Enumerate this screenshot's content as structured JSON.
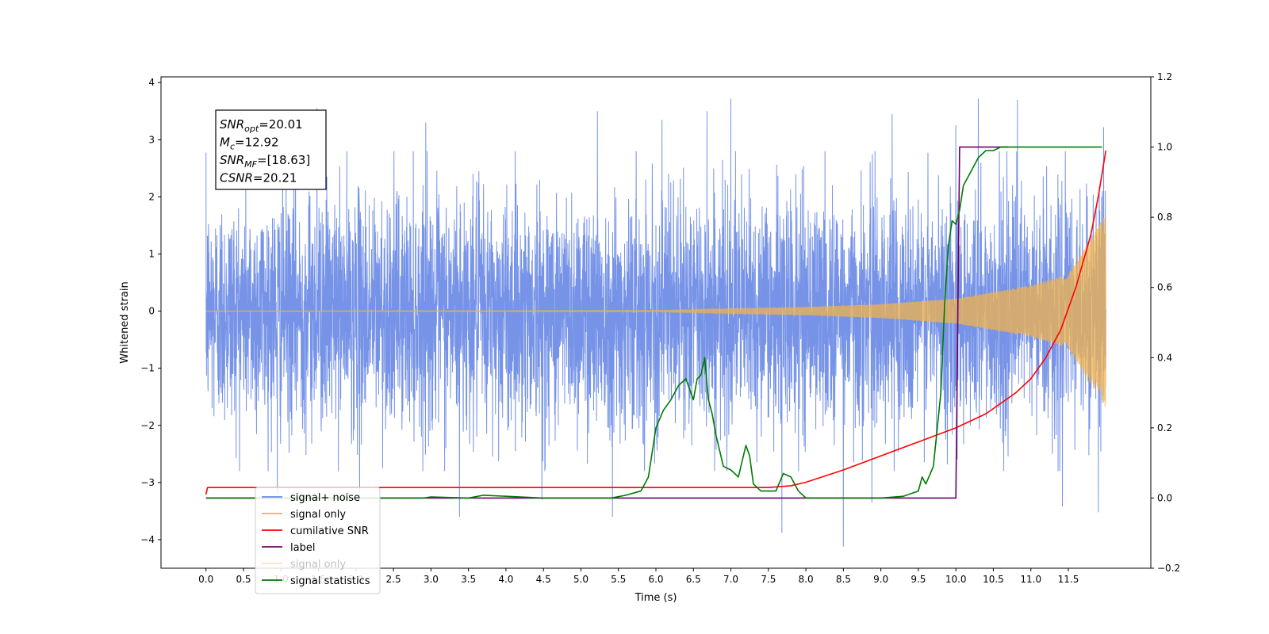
{
  "chart_data": {
    "type": "line",
    "xlabel": "Time (s)",
    "ylabel": "Whitened strain",
    "xlim": [
      -0.6,
      12.6
    ],
    "ylim": [
      -4.5,
      4.1
    ],
    "ylim_right": [
      -0.2,
      1.2
    ],
    "x_ticks": [
      0.0,
      0.5,
      1.0,
      1.5,
      2.0,
      2.5,
      3.0,
      3.5,
      4.0,
      4.5,
      5.0,
      5.5,
      6.0,
      6.5,
      7.0,
      7.5,
      8.0,
      8.5,
      9.0,
      9.5,
      10.0,
      10.5,
      11.0,
      11.5
    ],
    "x_tick_labels": [
      "0.0",
      "0.5",
      "1.0",
      "1.5",
      "2.0",
      "2.5",
      "3.0",
      "3.5",
      "4.0",
      "4.5",
      "5.0",
      "5.5",
      "6.0",
      "6.5",
      "7.0",
      "7.5",
      "8.0",
      "8.5",
      "9.0",
      "9.5",
      "10.0",
      "10.5",
      "11.0",
      "11.5"
    ],
    "y_ticks": [
      -4,
      -3,
      -2,
      -1,
      0,
      1,
      2,
      3,
      4
    ],
    "y_tick_labels": [
      "−4",
      "−3",
      "−2",
      "−1",
      "0",
      "1",
      "2",
      "3",
      "4"
    ],
    "y_ticks_right": [
      -0.2,
      0.0,
      0.2,
      0.4,
      0.6,
      0.8,
      1.0,
      1.2
    ],
    "y_tick_labels_right": [
      "−0.2",
      "0.0",
      "0.2",
      "0.4",
      "0.6",
      "0.8",
      "1.0",
      "1.2"
    ],
    "grid": false,
    "legend_position": "lower-left",
    "annotation": {
      "lines": [
        {
          "main": "SNR",
          "sub": "opt",
          "value": "=20.01"
        },
        {
          "main": "M",
          "sub": "c",
          "value": "=12.92"
        },
        {
          "main": "SNR",
          "sub": "MF",
          "value": "=[18.63]"
        },
        {
          "main": "CSNR",
          "sub": "",
          "value": "=20.21"
        }
      ]
    },
    "series": [
      {
        "name": "signal+ noise",
        "axis": "left",
        "color": "#6f8de6",
        "kind": "noise",
        "t_start": 0.0,
        "t_end": 12.0,
        "std": 1.0,
        "peak_spikes": [
          [
            0.95,
            -3.2
          ],
          [
            1.48,
            3.55
          ],
          [
            2.05,
            -3.3
          ],
          [
            2.93,
            3.3
          ],
          [
            3.38,
            -3.6
          ],
          [
            4.48,
            -3.3
          ],
          [
            5.22,
            3.5
          ],
          [
            5.42,
            -3.6
          ],
          [
            6.08,
            3.35
          ],
          [
            6.68,
            3.5
          ],
          [
            7.0,
            3.72
          ],
          [
            7.68,
            -3.88
          ],
          [
            8.5,
            -4.12
          ],
          [
            8.88,
            -3.35
          ],
          [
            9.15,
            3.45
          ],
          [
            10.0,
            3.25
          ],
          [
            10.3,
            3.72
          ],
          [
            10.82,
            3.7
          ],
          [
            11.42,
            -3.42
          ],
          [
            11.9,
            -3.52
          ],
          [
            11.97,
            3.22
          ]
        ]
      },
      {
        "name": "signal only",
        "axis": "left",
        "color": "#f2b34d",
        "kind": "chirp",
        "t_start": 0.0,
        "t_end": 12.0,
        "t_c": 12.6,
        "amplitude_at": [
          [
            0.0,
            0.005
          ],
          [
            6.0,
            0.012
          ],
          [
            8.0,
            0.07
          ],
          [
            9.0,
            0.12
          ],
          [
            10.0,
            0.22
          ],
          [
            11.0,
            0.45
          ],
          [
            11.5,
            0.65
          ],
          [
            12.0,
            1.7
          ]
        ]
      },
      {
        "name": "cumilative SNR",
        "axis": "right",
        "color": "#ff0000",
        "kind": "line",
        "x": [
          0.0,
          0.02,
          2.0,
          4.0,
          6.0,
          7.0,
          7.5,
          7.8,
          8.0,
          8.5,
          9.0,
          9.5,
          10.0,
          10.4,
          10.8,
          11.0,
          11.2,
          11.4,
          11.6,
          11.8,
          11.9,
          12.0
        ],
        "y": [
          0.01,
          0.03,
          0.03,
          0.03,
          0.03,
          0.03,
          0.03,
          0.035,
          0.045,
          0.08,
          0.12,
          0.16,
          0.2,
          0.24,
          0.3,
          0.34,
          0.4,
          0.48,
          0.6,
          0.75,
          0.86,
          0.99
        ]
      },
      {
        "name": "label",
        "axis": "right",
        "color": "#6b006b",
        "kind": "line",
        "x": [
          0.0,
          10.0,
          10.05,
          10.7
        ],
        "y": [
          0.0,
          0.0,
          1.0,
          1.0
        ]
      },
      {
        "name": "signal statistics",
        "axis": "right",
        "color": "#007a00",
        "kind": "line",
        "x": [
          0.0,
          1.0,
          2.0,
          2.9,
          3.0,
          3.5,
          3.7,
          4.0,
          4.5,
          5.0,
          5.4,
          5.6,
          5.8,
          5.9,
          6.0,
          6.1,
          6.2,
          6.3,
          6.4,
          6.5,
          6.55,
          6.6,
          6.65,
          6.7,
          6.75,
          6.8,
          6.9,
          7.0,
          7.1,
          7.2,
          7.25,
          7.3,
          7.4,
          7.5,
          7.6,
          7.7,
          7.8,
          7.9,
          8.0,
          8.5,
          9.0,
          9.3,
          9.5,
          9.55,
          9.6,
          9.7,
          9.8,
          9.85,
          9.9,
          9.95,
          10.0,
          10.05,
          10.1,
          10.2,
          10.3,
          10.4,
          10.5,
          10.6,
          10.8,
          11.0,
          11.5,
          11.95
        ],
        "y": [
          0.0,
          0.0,
          0.0,
          0.0,
          0.003,
          0.0,
          0.008,
          0.005,
          0.0,
          0.0,
          0.0,
          0.008,
          0.02,
          0.06,
          0.2,
          0.25,
          0.28,
          0.32,
          0.34,
          0.28,
          0.34,
          0.35,
          0.4,
          0.28,
          0.24,
          0.18,
          0.09,
          0.08,
          0.06,
          0.15,
          0.12,
          0.04,
          0.02,
          0.02,
          0.02,
          0.07,
          0.06,
          0.02,
          0.0,
          0.0,
          0.0,
          0.005,
          0.02,
          0.06,
          0.04,
          0.09,
          0.3,
          0.55,
          0.72,
          0.79,
          0.78,
          0.82,
          0.89,
          0.93,
          0.97,
          0.99,
          0.99,
          1.0,
          1.0,
          1.0,
          1.0,
          1.0
        ]
      },
      {
        "name": "signal only",
        "axis": "left",
        "color": "#f2b34d",
        "kind": "legend-only",
        "legend_occluded": true
      }
    ]
  }
}
